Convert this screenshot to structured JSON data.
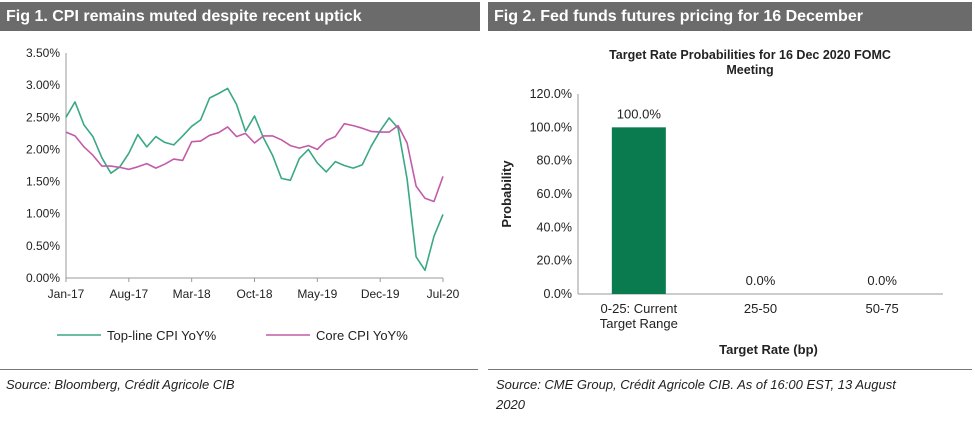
{
  "fig1": {
    "title": "Fig 1. CPI remains muted despite recent uptick",
    "source": "Source: Bloomberg, Crédit Agricole CIB"
  },
  "fig2": {
    "title": "Fig 2. Fed funds futures pricing for 16 December",
    "source_line1": "Source: CME Group, Crédit Agricole CIB. As of 16:00 EST, 13 August",
    "source_line2": "2020"
  },
  "colors": {
    "topline": "#3aa886",
    "core": "#c25ca8",
    "bar": "#0a7a4f",
    "header": "#6b6b6b"
  },
  "chart_data": [
    {
      "type": "line",
      "title": "",
      "ylim": [
        0,
        3.5
      ],
      "y_ticks": [
        "0.00%",
        "0.50%",
        "1.00%",
        "1.50%",
        "2.00%",
        "2.50%",
        "3.00%",
        "3.50%"
      ],
      "y_tick_values": [
        0,
        0.5,
        1,
        1.5,
        2,
        2.5,
        3,
        3.5
      ],
      "x_tick_labels": [
        "Jan-17",
        "Aug-17",
        "Mar-18",
        "Oct-18",
        "May-19",
        "Dec-19",
        "Jul-20"
      ],
      "x_tick_index": [
        0,
        7,
        14,
        21,
        28,
        35,
        42
      ],
      "x": [
        "Jan-17",
        "Feb-17",
        "Mar-17",
        "Apr-17",
        "May-17",
        "Jun-17",
        "Jul-17",
        "Aug-17",
        "Sep-17",
        "Oct-17",
        "Nov-17",
        "Dec-17",
        "Jan-18",
        "Feb-18",
        "Mar-18",
        "Apr-18",
        "May-18",
        "Jun-18",
        "Jul-18",
        "Aug-18",
        "Sep-18",
        "Oct-18",
        "Nov-18",
        "Dec-18",
        "Jan-19",
        "Feb-19",
        "Mar-19",
        "Apr-19",
        "May-19",
        "Jun-19",
        "Jul-19",
        "Aug-19",
        "Sep-19",
        "Oct-19",
        "Nov-19",
        "Dec-19",
        "Jan-20",
        "Feb-20",
        "Mar-20",
        "Apr-20",
        "May-20",
        "Jun-20",
        "Jul-20"
      ],
      "series": [
        {
          "name": "Top-line CPI YoY%",
          "values": [
            2.5,
            2.74,
            2.38,
            2.2,
            1.87,
            1.63,
            1.73,
            1.94,
            2.23,
            2.04,
            2.2,
            2.11,
            2.07,
            2.21,
            2.36,
            2.46,
            2.8,
            2.87,
            2.95,
            2.7,
            2.28,
            2.52,
            2.18,
            1.91,
            1.55,
            1.52,
            1.86,
            2.0,
            1.79,
            1.65,
            1.81,
            1.75,
            1.71,
            1.76,
            2.05,
            2.29,
            2.49,
            2.33,
            1.54,
            0.33,
            0.12,
            0.65,
            0.99
          ]
        },
        {
          "name": "Core CPI YoY%",
          "values": [
            2.27,
            2.21,
            2.04,
            1.91,
            1.74,
            1.74,
            1.72,
            1.69,
            1.73,
            1.78,
            1.71,
            1.77,
            1.85,
            1.83,
            2.12,
            2.13,
            2.22,
            2.26,
            2.35,
            2.2,
            2.25,
            2.1,
            2.21,
            2.21,
            2.15,
            2.06,
            2.02,
            2.06,
            2.0,
            2.14,
            2.2,
            2.4,
            2.37,
            2.33,
            2.28,
            2.27,
            2.27,
            2.37,
            2.1,
            1.43,
            1.24,
            1.19,
            1.58
          ]
        }
      ],
      "legend": [
        "Top-line CPI YoY%",
        "Core CPI YoY%"
      ],
      "legend_placement": "bottom"
    },
    {
      "type": "bar",
      "title": "Target Rate Probabilities for 16 Dec 2020 FOMC Meeting",
      "title_line1": "Target Rate Probabilities for 16 Dec 2020 FOMC",
      "title_line2": "Meeting",
      "categories": [
        "0-25: Current Target Range",
        "25-50",
        "50-75"
      ],
      "category_lines": [
        [
          "0-25: Current",
          "Target Range"
        ],
        [
          "25-50"
        ],
        [
          "50-75"
        ]
      ],
      "values": [
        100.0,
        0.0,
        0.0
      ],
      "data_labels": [
        "100.0%",
        "0.0%",
        "0.0%"
      ],
      "xlabel": "Target Rate (bp)",
      "ylabel": "Probability",
      "ylim": [
        0,
        120
      ],
      "y_ticks": [
        "0.0%",
        "20.0%",
        "40.0%",
        "60.0%",
        "80.0%",
        "100.0%",
        "120.0%"
      ],
      "y_tick_values": [
        0,
        20,
        40,
        60,
        80,
        100,
        120
      ]
    }
  ]
}
